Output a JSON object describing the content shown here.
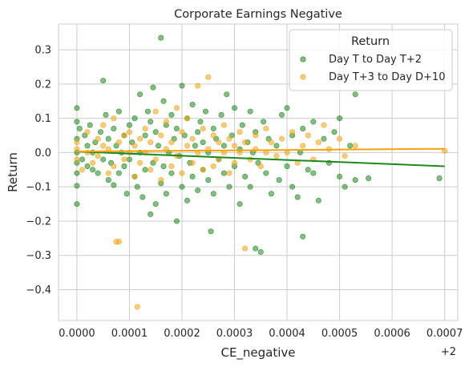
{
  "chart_data": {
    "type": "scatter",
    "title": "Corporate Earnings Negative",
    "xlabel": "CE_negative",
    "ylabel": "Return",
    "x_offset_label": "+2",
    "xlim": [
      -3.5e-05,
      0.000725
    ],
    "ylim": [
      -0.49,
      0.375
    ],
    "xticks": [
      0,
      0.0001,
      0.0002,
      0.0003,
      0.0004,
      0.0005,
      0.0006,
      0.0007
    ],
    "xtick_labels": [
      "0.0000",
      "0.0001",
      "0.0002",
      "0.0003",
      "0.0004",
      "0.0005",
      "0.0006",
      "0.0007"
    ],
    "yticks": [
      -0.4,
      -0.3,
      -0.2,
      -0.1,
      0.0,
      0.1,
      0.2,
      0.3
    ],
    "ytick_labels": [
      "−0.4",
      "−0.3",
      "−0.2",
      "−0.1",
      "0.0",
      "0.1",
      "0.2",
      "0.3"
    ],
    "grid": true,
    "legend": {
      "title": "Return",
      "placement": "top-right"
    },
    "series": [
      {
        "name": "Day T to Day T+2",
        "color": "#1a8a1a",
        "regression": {
          "x": [
            0,
            0.0007
          ],
          "y": [
            0.003,
            -0.04
          ]
        },
        "points": [
          [
            0.0,
            0.13
          ],
          [
            0.0,
            0.09
          ],
          [
            0.0,
            -0.15
          ],
          [
            0.0,
            -0.097
          ],
          [
            0.0,
            -0.06
          ],
          [
            0.0,
            0.0
          ],
          [
            0.0,
            0.04
          ],
          [
            0.0,
            -0.03
          ],
          [
            5e-06,
            0.07
          ],
          [
            1e-05,
            -0.02
          ],
          [
            1.5e-05,
            0.05
          ],
          [
            2e-05,
            -0.04
          ],
          [
            2e-05,
            0.02
          ],
          [
            2.5e-05,
            0.08
          ],
          [
            3e-05,
            -0.05
          ],
          [
            3e-05,
            0.0
          ],
          [
            3.5e-05,
            0.03
          ],
          [
            4e-05,
            -0.06
          ],
          [
            4.5e-05,
            0.06
          ],
          [
            5e-05,
            0.21
          ],
          [
            5e-05,
            -0.02
          ],
          [
            5.5e-05,
            0.11
          ],
          [
            6e-05,
            -0.08
          ],
          [
            6e-05,
            0.04
          ],
          [
            6.5e-05,
            -0.03
          ],
          [
            7e-05,
            0.07
          ],
          [
            7e-05,
            -0.095
          ],
          [
            7.5e-05,
            0.02
          ],
          [
            8e-05,
            -0.06
          ],
          [
            8e-05,
            0.12
          ],
          [
            8.5e-05,
            0.0
          ],
          [
            9e-05,
            -0.04
          ],
          [
            9e-05,
            0.05
          ],
          [
            9.5e-05,
            -0.12
          ],
          [
            0.0001,
            0.08
          ],
          [
            0.0001,
            -0.02
          ],
          [
            0.000105,
            0.03
          ],
          [
            0.00011,
            -0.07
          ],
          [
            0.00011,
            0.1
          ],
          [
            0.000115,
            -0.1
          ],
          [
            0.00012,
            0.17
          ],
          [
            0.00012,
            0.0
          ],
          [
            0.000125,
            -0.13
          ],
          [
            0.00013,
            0.05
          ],
          [
            0.00013,
            -0.05
          ],
          [
            0.000135,
            0.12
          ],
          [
            0.00014,
            -0.18
          ],
          [
            0.00014,
            0.09
          ],
          [
            0.000145,
            0.19
          ],
          [
            0.000145,
            -0.03
          ],
          [
            0.00015,
            0.06
          ],
          [
            0.00015,
            -0.15
          ],
          [
            0.000155,
            0.02
          ],
          [
            0.00016,
            0.335
          ],
          [
            0.00016,
            -0.09
          ],
          [
            0.000165,
            0.15
          ],
          [
            0.000165,
            -0.04
          ],
          [
            0.00017,
            0.08
          ],
          [
            0.00017,
            -0.12
          ],
          [
            0.000175,
            0.0
          ],
          [
            0.00018,
            0.11
          ],
          [
            0.00018,
            -0.06
          ],
          [
            0.000185,
            0.04
          ],
          [
            0.00019,
            -0.2
          ],
          [
            0.00019,
            0.07
          ],
          [
            0.000195,
            -0.01
          ],
          [
            0.0002,
            0.195
          ],
          [
            0.0002,
            -0.1
          ],
          [
            0.000205,
            0.05
          ],
          [
            0.00021,
            -0.14
          ],
          [
            0.00021,
            0.1
          ],
          [
            0.000215,
            -0.03
          ],
          [
            0.00022,
            0.14
          ],
          [
            0.00022,
            -0.07
          ],
          [
            0.000225,
            0.02
          ],
          [
            0.00023,
            0.06
          ],
          [
            0.00023,
            -0.11
          ],
          [
            0.000235,
            0.09
          ],
          [
            0.00024,
            -0.05
          ],
          [
            0.00024,
            0.03
          ],
          [
            0.000245,
            0.12
          ],
          [
            0.00025,
            -0.08
          ],
          [
            0.00025,
            0.0
          ],
          [
            0.000255,
            -0.23
          ],
          [
            0.00026,
            0.07
          ],
          [
            0.00026,
            -0.12
          ],
          [
            0.000265,
            0.04
          ],
          [
            0.00027,
            -0.02
          ],
          [
            0.000275,
            0.11
          ],
          [
            0.00028,
            -0.06
          ],
          [
            0.00028,
            0.02
          ],
          [
            0.000285,
            0.17
          ],
          [
            0.00029,
            -0.1
          ],
          [
            0.000295,
            0.05
          ],
          [
            0.0003,
            0.13
          ],
          [
            0.0003,
            -0.04
          ],
          [
            0.00031,
            0.01
          ],
          [
            0.00031,
            -0.15
          ],
          [
            0.000315,
            0.08
          ],
          [
            0.00032,
            -0.07
          ],
          [
            0.000325,
            0.03
          ],
          [
            0.00033,
            0.12
          ],
          [
            0.00033,
            -0.1
          ],
          [
            0.000335,
            0.0
          ],
          [
            0.00034,
            -0.28
          ],
          [
            0.00034,
            0.06
          ],
          [
            0.000345,
            -0.03
          ],
          [
            0.00035,
            -0.29
          ],
          [
            0.000355,
            0.09
          ],
          [
            0.00036,
            -0.06
          ],
          [
            0.000365,
            0.04
          ],
          [
            0.00037,
            -0.12
          ],
          [
            0.00038,
            0.02
          ],
          [
            0.000385,
            -0.08
          ],
          [
            0.00039,
            0.11
          ],
          [
            0.0004,
            -0.04
          ],
          [
            0.0004,
            0.13
          ],
          [
            0.00041,
            -0.1
          ],
          [
            0.00041,
            0.05
          ],
          [
            0.00042,
            -0.13
          ],
          [
            0.000425,
            0.0
          ],
          [
            0.00043,
            -0.245
          ],
          [
            0.00043,
            0.07
          ],
          [
            0.00044,
            -0.05
          ],
          [
            0.00045,
            0.09
          ],
          [
            0.00045,
            -0.06
          ],
          [
            0.00046,
            -0.14
          ],
          [
            0.00047,
            0.04
          ],
          [
            0.00048,
            -0.03
          ],
          [
            0.00049,
            0.06
          ],
          [
            0.0005,
            -0.07
          ],
          [
            0.0005,
            0.1
          ],
          [
            0.00051,
            -0.1
          ],
          [
            0.00052,
            0.02
          ],
          [
            0.00053,
            0.17
          ],
          [
            0.00053,
            -0.08
          ],
          [
            0.000555,
            -0.075
          ],
          [
            0.00069,
            -0.075
          ]
        ]
      },
      {
        "name": "Day T+3 to Day D+10",
        "color": "#f5a20c",
        "regression": {
          "x": [
            0,
            0.0007
          ],
          "y": [
            0.003,
            0.011
          ]
        },
        "points": [
          [
            0.0,
            0.03
          ],
          [
            0.0,
            -0.02
          ],
          [
            0.0,
            0.01
          ],
          [
            1e-05,
            -0.05
          ],
          [
            2e-05,
            0.06
          ],
          [
            2e-05,
            0.0
          ],
          [
            3e-05,
            -0.03
          ],
          [
            4e-05,
            0.04
          ],
          [
            4e-05,
            -0.01
          ],
          [
            5e-05,
            0.08
          ],
          [
            5e-05,
            0.02
          ],
          [
            6e-05,
            -0.06
          ],
          [
            6e-05,
            0.01
          ],
          [
            7e-05,
            0.1
          ],
          [
            7e-05,
            -0.04
          ],
          [
            7.5e-05,
            -0.26
          ],
          [
            8e-05,
            -0.26
          ],
          [
            8e-05,
            0.03
          ],
          [
            9e-05,
            0.05
          ],
          [
            9e-05,
            -0.02
          ],
          [
            0.0001,
            0.0
          ],
          [
            0.0001,
            0.06
          ],
          [
            0.00011,
            -0.07
          ],
          [
            0.00011,
            0.02
          ],
          [
            0.000115,
            -0.45
          ],
          [
            0.00012,
            0.04
          ],
          [
            0.00012,
            -0.03
          ],
          [
            0.00013,
            0.07
          ],
          [
            0.00013,
            0.0
          ],
          [
            0.00014,
            -0.05
          ],
          [
            0.00014,
            0.03
          ],
          [
            0.00015,
            0.12
          ],
          [
            0.00015,
            -0.02
          ],
          [
            0.00016,
            0.05
          ],
          [
            0.00016,
            -0.08
          ],
          [
            0.00017,
            0.01
          ],
          [
            0.00017,
            0.09
          ],
          [
            0.00018,
            -0.04
          ],
          [
            0.00018,
            0.03
          ],
          [
            0.00019,
            0.13
          ],
          [
            0.00019,
            -0.01
          ],
          [
            0.0002,
            0.06
          ],
          [
            0.0002,
            -0.06
          ],
          [
            0.00021,
            0.02
          ],
          [
            0.00021,
            0.1
          ],
          [
            0.00022,
            -0.03
          ],
          [
            0.00022,
            0.04
          ],
          [
            0.00023,
            0.195
          ],
          [
            0.00023,
            0.0
          ],
          [
            0.00024,
            -0.05
          ],
          [
            0.00024,
            0.07
          ],
          [
            0.00025,
            0.22
          ],
          [
            0.00025,
            0.01
          ],
          [
            0.00026,
            -0.04
          ],
          [
            0.00026,
            0.05
          ],
          [
            0.00027,
            0.03
          ],
          [
            0.00027,
            -0.02
          ],
          [
            0.00028,
            0.08
          ],
          [
            0.00028,
            0.0
          ],
          [
            0.00029,
            -0.06
          ],
          [
            0.00029,
            0.04
          ],
          [
            0.0003,
            0.02
          ],
          [
            0.0003,
            -0.03
          ],
          [
            0.00031,
            0.06
          ],
          [
            0.00031,
            0.0
          ],
          [
            0.00032,
            -0.28
          ],
          [
            0.00032,
            0.03
          ],
          [
            0.00033,
            -0.02
          ],
          [
            0.00034,
            0.05
          ],
          [
            0.00034,
            0.01
          ],
          [
            0.00035,
            -0.04
          ],
          [
            0.00036,
            0.07
          ],
          [
            0.00036,
            0.0
          ],
          [
            0.00037,
            0.03
          ],
          [
            0.00038,
            -0.01
          ],
          [
            0.00039,
            0.04
          ],
          [
            0.0004,
            0.0
          ],
          [
            0.00041,
            0.06
          ],
          [
            0.00042,
            -0.03
          ],
          [
            0.00043,
            0.02
          ],
          [
            0.00044,
            0.05
          ],
          [
            0.00045,
            -0.02
          ],
          [
            0.00046,
            0.03
          ],
          [
            0.00047,
            0.08
          ],
          [
            0.00048,
            0.01
          ],
          [
            0.0005,
            0.04
          ],
          [
            0.00051,
            -0.01
          ],
          [
            0.00053,
            0.02
          ],
          [
            0.0007,
            0.005
          ]
        ]
      }
    ]
  }
}
